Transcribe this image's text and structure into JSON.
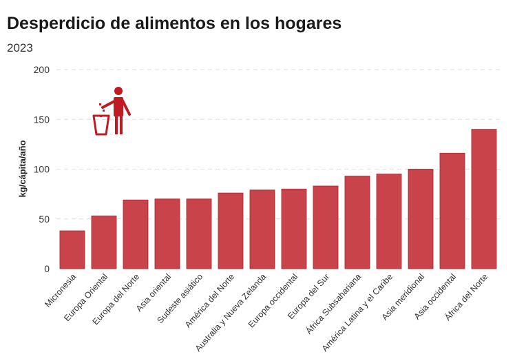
{
  "header": {
    "title": "Desperdicio de alimentos en los hogares",
    "subtitle": "2023"
  },
  "colors": {
    "bar": "#c9434a",
    "bar_stroke": "#b03038",
    "icon": "#c01a22",
    "grid": "#e2e2e2"
  },
  "icon": "person-trash-can-icon",
  "chart_data": {
    "type": "bar",
    "title": "Desperdicio de alimentos en los hogares",
    "subtitle": "2023",
    "xlabel": "",
    "ylabel": "kg/cápita/año",
    "ylim": [
      0,
      200
    ],
    "yticks": [
      0,
      50,
      100,
      150,
      200
    ],
    "grid": true,
    "categories": [
      "Micronesia",
      "Europa Oriental",
      "Europa del Norte",
      "Asia oriental",
      "Sudeste asiático",
      "América del Norte",
      "Australia y Nueva Zelanda",
      "Europa occidental",
      "Europa del Sur",
      "África Subsahariana",
      "América Latina y el Caribe",
      "Asia meridional",
      "Asia occidental",
      "África del Norte"
    ],
    "values": [
      38,
      53,
      69,
      70,
      70,
      76,
      79,
      80,
      83,
      93,
      95,
      100,
      116,
      140
    ]
  }
}
